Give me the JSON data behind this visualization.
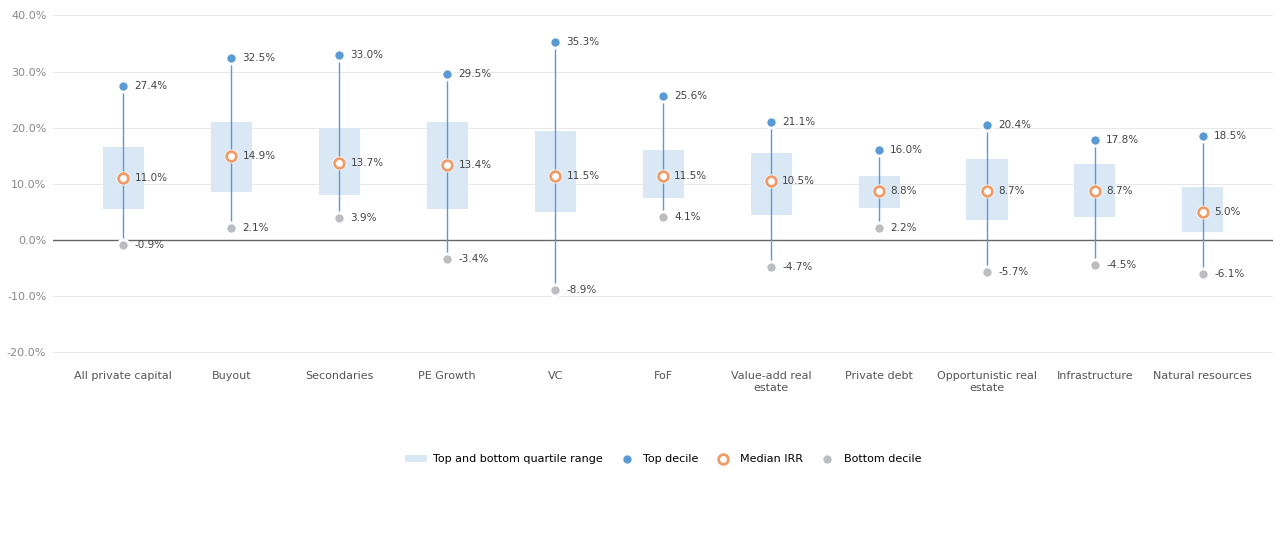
{
  "categories": [
    "All private capital",
    "Buyout",
    "Secondaries",
    "PE Growth",
    "VC",
    "FoF",
    "Value-add real\nestate",
    "Private debt",
    "Opportunistic real\nestate",
    "Infrastructure",
    "Natural resources"
  ],
  "top_decile": [
    27.4,
    32.5,
    33.0,
    29.5,
    35.3,
    25.6,
    21.1,
    16.0,
    20.4,
    17.8,
    18.5
  ],
  "median_irr": [
    11.0,
    14.9,
    13.7,
    13.4,
    11.5,
    11.5,
    10.5,
    8.8,
    8.7,
    8.7,
    5.0
  ],
  "bottom_decile": [
    -0.9,
    2.1,
    3.9,
    -3.4,
    -8.9,
    4.1,
    -4.7,
    2.2,
    -5.7,
    -4.5,
    -6.1
  ],
  "quartile_bottom": [
    5.5,
    8.5,
    8.0,
    5.5,
    5.0,
    7.5,
    4.5,
    5.8,
    3.5,
    4.2,
    1.5
  ],
  "quartile_top": [
    16.5,
    21.0,
    20.0,
    21.0,
    19.5,
    16.0,
    15.5,
    11.5,
    14.5,
    13.5,
    9.5
  ],
  "box_color": "#dae8f5",
  "top_decile_color": "#5b9bd5",
  "median_color": "#ed9c6a",
  "bottom_decile_color": "#bbbdc0",
  "line_color": "#5b9bd5",
  "zero_line_color": "#666666",
  "background_color": "#ffffff",
  "ylim": [
    -0.225,
    0.415
  ],
  "yticks": [
    -0.2,
    -0.1,
    0.0,
    0.1,
    0.2,
    0.3,
    0.4
  ],
  "ytick_labels": [
    "-20.0%",
    "-10.0%",
    "0.0%",
    "10.0%",
    "20.0%",
    "30.0%",
    "40.0%"
  ]
}
